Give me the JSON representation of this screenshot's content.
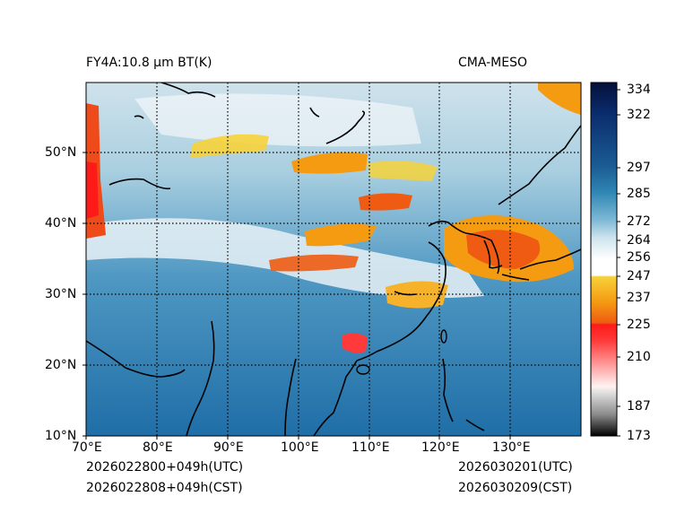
{
  "header": {
    "left_title": "FY4A:10.8 µm BT(K)",
    "right_title": "CMA-MESO"
  },
  "map": {
    "lon_labels": [
      "70°E",
      "80°E",
      "90°E",
      "100°E",
      "110°E",
      "120°E",
      "130°E"
    ],
    "lat_labels": [
      "10°N",
      "20°N",
      "30°N",
      "40°N",
      "50°N"
    ]
  },
  "colorbar": {
    "ticks": [
      "334",
      "322",
      "297",
      "285",
      "272",
      "264",
      "256",
      "247",
      "237",
      "225",
      "210",
      "187",
      "173"
    ]
  },
  "footer": {
    "left_utc": "2026022800+049h(UTC)",
    "left_cst": "2026022808+049h(CST)",
    "right_utc": "2026030201(UTC)",
    "right_cst": "2026030209(CST)"
  }
}
